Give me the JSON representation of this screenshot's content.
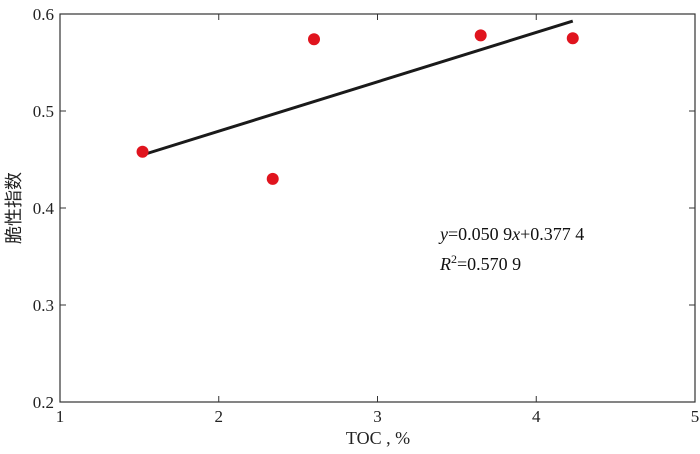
{
  "chart_data": {
    "type": "scatter",
    "xlabel": "TOC , %",
    "ylabel": "脆性指数",
    "xlim": [
      1,
      5
    ],
    "ylim": [
      0.2,
      0.6
    ],
    "x_ticks": [
      "1",
      "2",
      "3",
      "4",
      "5"
    ],
    "y_ticks": [
      "0.2",
      "0.3",
      "0.4",
      "0.5",
      "0.6"
    ],
    "points": [
      {
        "x": 1.52,
        "y": 0.458
      },
      {
        "x": 2.34,
        "y": 0.43
      },
      {
        "x": 2.6,
        "y": 0.574
      },
      {
        "x": 3.65,
        "y": 0.578
      },
      {
        "x": 4.23,
        "y": 0.575
      }
    ],
    "trendline": {
      "x_start": 1.52,
      "x_end": 4.23,
      "slope": 0.0509,
      "intercept": 0.3774
    },
    "equation": {
      "y_var": "y",
      "equation_rest": "=0.050 9",
      "x_var": "x",
      "equation_tail": "+0.377 4",
      "r_var": "R",
      "r_sup": "2",
      "r_value": "=0.570 9"
    },
    "grid": false,
    "colors": {
      "points": "#e0141e",
      "line": "#1a1a1a",
      "axes": "#333333"
    }
  }
}
